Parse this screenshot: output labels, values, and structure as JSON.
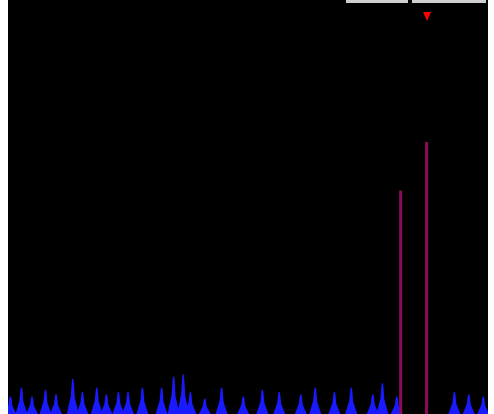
{
  "colors": {
    "background": "#000000",
    "frame": "#ffffff",
    "baseline_peaks": "#1a1aff",
    "highlight_peaks": "#8b0a5a",
    "marker": "#ff0000"
  },
  "display": {
    "marker_icon": "down-triangle-icon",
    "level_scale_max": 1.0,
    "baseline_peaks": [
      {
        "pos": 0.005,
        "level": 0.04
      },
      {
        "pos": 0.028,
        "level": 0.06
      },
      {
        "pos": 0.05,
        "level": 0.04
      },
      {
        "pos": 0.078,
        "level": 0.055
      },
      {
        "pos": 0.1,
        "level": 0.045
      },
      {
        "pos": 0.135,
        "level": 0.08
      },
      {
        "pos": 0.155,
        "level": 0.05
      },
      {
        "pos": 0.185,
        "level": 0.06
      },
      {
        "pos": 0.205,
        "level": 0.045
      },
      {
        "pos": 0.23,
        "level": 0.05
      },
      {
        "pos": 0.25,
        "level": 0.05
      },
      {
        "pos": 0.28,
        "level": 0.06
      },
      {
        "pos": 0.32,
        "level": 0.06
      },
      {
        "pos": 0.345,
        "level": 0.085
      },
      {
        "pos": 0.365,
        "level": 0.09
      },
      {
        "pos": 0.38,
        "level": 0.05
      },
      {
        "pos": 0.41,
        "level": 0.035
      },
      {
        "pos": 0.445,
        "level": 0.06
      },
      {
        "pos": 0.49,
        "level": 0.04
      },
      {
        "pos": 0.53,
        "level": 0.055
      },
      {
        "pos": 0.565,
        "level": 0.05
      },
      {
        "pos": 0.61,
        "level": 0.045
      },
      {
        "pos": 0.64,
        "level": 0.06
      },
      {
        "pos": 0.68,
        "level": 0.05
      },
      {
        "pos": 0.715,
        "level": 0.06
      },
      {
        "pos": 0.76,
        "level": 0.045
      },
      {
        "pos": 0.78,
        "level": 0.07
      },
      {
        "pos": 0.81,
        "level": 0.04
      },
      {
        "pos": 0.93,
        "level": 0.05
      },
      {
        "pos": 0.96,
        "level": 0.045
      },
      {
        "pos": 0.99,
        "level": 0.04
      }
    ],
    "highlight_peaks": [
      {
        "pos": 0.818,
        "level": 0.55
      },
      {
        "pos": 0.872,
        "level": 0.67
      }
    ],
    "marker_pos": 0.873
  }
}
